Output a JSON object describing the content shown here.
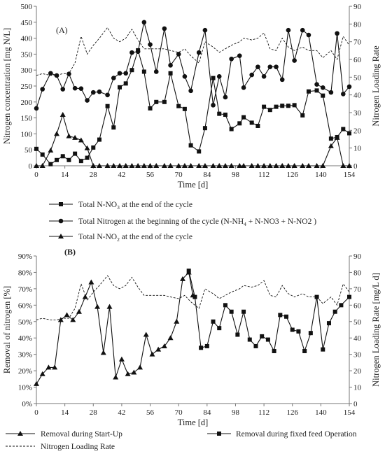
{
  "chart_data": [
    {
      "type": "line",
      "panel_label": "(A)",
      "xlabel": "Time [d]",
      "ylabel": "Nitrogen concentration [mg N/L]",
      "y2label": "Nitrogen Loading Rate",
      "xlim": [
        0,
        154
      ],
      "ylim": [
        0,
        500
      ],
      "y2lim": [
        0,
        90
      ],
      "x_ticks": [
        0,
        14,
        28,
        42,
        56,
        70,
        84,
        98,
        112,
        126,
        140,
        154
      ],
      "y_ticks": [
        0,
        50,
        100,
        150,
        200,
        250,
        300,
        350,
        400,
        450,
        500
      ],
      "y2_ticks": [
        0,
        10,
        20,
        30,
        40,
        50,
        60,
        70,
        80,
        90
      ],
      "legend_position": "bottom",
      "series": [
        {
          "name": "Total N-NO3 at the end of the cycle",
          "legend_main": "Total N-NO",
          "legend_sub": "3",
          "legend_tail": " at the end of the cycle",
          "marker": "square",
          "axis": "left",
          "x": [
            0,
            3,
            7,
            10,
            13,
            16,
            19,
            22,
            25,
            28,
            31,
            35,
            38,
            41,
            44,
            47,
            50,
            53,
            56,
            59,
            63,
            66,
            70,
            73,
            76,
            80,
            83,
            87,
            90,
            93,
            96,
            100,
            102,
            106,
            109,
            112,
            115,
            118,
            121,
            124,
            127,
            131,
            134,
            138,
            141,
            145,
            148,
            151,
            154
          ],
          "y": [
            53,
            35,
            5,
            18,
            30,
            18,
            38,
            15,
            25,
            57,
            82,
            187,
            120,
            246,
            258,
            300,
            362,
            295,
            180,
            200,
            200,
            290,
            187,
            178,
            64,
            45,
            118,
            275,
            163,
            160,
            115,
            133,
            152,
            135,
            125,
            185,
            175,
            185,
            188,
            188,
            190,
            158,
            233,
            236,
            220,
            85,
            90,
            115,
            102
          ]
        },
        {
          "name": "Total Nitrogen at the beginning of the cycle (N-NH4 + N-NO3 + N-NO2)",
          "legend_main": "Total Nitrogen at the beginning of the cycle (N-NH",
          "legend_sub": "4",
          "legend_tail": " + N-NO3 + N-NO2 )",
          "marker": "circle",
          "axis": "left",
          "x": [
            0,
            3,
            7,
            10,
            13,
            16,
            19,
            22,
            25,
            28,
            31,
            35,
            38,
            41,
            44,
            47,
            50,
            53,
            56,
            59,
            63,
            66,
            70,
            73,
            76,
            80,
            83,
            87,
            90,
            93,
            96,
            100,
            102,
            106,
            109,
            112,
            115,
            118,
            121,
            124,
            127,
            131,
            134,
            138,
            141,
            145,
            148,
            151,
            154
          ],
          "y": [
            180,
            240,
            290,
            283,
            240,
            288,
            243,
            242,
            205,
            230,
            232,
            222,
            275,
            290,
            290,
            355,
            358,
            450,
            380,
            295,
            430,
            315,
            350,
            280,
            235,
            355,
            425,
            190,
            280,
            215,
            335,
            345,
            245,
            285,
            310,
            280,
            310,
            310,
            270,
            425,
            330,
            425,
            410,
            255,
            245,
            230,
            415,
            225,
            248
          ]
        },
        {
          "name": "Total N-NO2 at the end of the cycle",
          "legend_main": "Total N-NO",
          "legend_sub": "2",
          "legend_tail": " at the end of the cycle",
          "marker": "triangle",
          "axis": "left",
          "x": [
            0,
            3,
            7,
            10,
            13,
            16,
            19,
            22,
            25,
            28,
            31,
            35,
            38,
            41,
            44,
            47,
            50,
            53,
            56,
            59,
            63,
            66,
            70,
            73,
            76,
            80,
            83,
            87,
            90,
            93,
            96,
            100,
            102,
            106,
            109,
            112,
            115,
            118,
            121,
            124,
            127,
            131,
            134,
            138,
            141,
            145,
            148,
            151,
            154
          ],
          "y": [
            0,
            0,
            48,
            100,
            160,
            93,
            88,
            80,
            55,
            0,
            0,
            0,
            0,
            0,
            0,
            0,
            0,
            0,
            0,
            0,
            0,
            0,
            0,
            0,
            0,
            0,
            0,
            0,
            0,
            0,
            0,
            0,
            0,
            0,
            0,
            0,
            0,
            0,
            0,
            0,
            0,
            0,
            0,
            0,
            0,
            62,
            88,
            0,
            0
          ]
        },
        {
          "name": "Nitrogen Loading Rate",
          "marker": "none",
          "style": "dashed",
          "axis": "right",
          "x": [
            0,
            3,
            7,
            10,
            13,
            16,
            19,
            22,
            25,
            28,
            31,
            35,
            38,
            41,
            44,
            47,
            50,
            53,
            56,
            59,
            63,
            66,
            70,
            73,
            76,
            80,
            83,
            87,
            90,
            93,
            96,
            100,
            102,
            106,
            109,
            112,
            115,
            118,
            121,
            124,
            127,
            131,
            134,
            138,
            141,
            145,
            148,
            151,
            154
          ],
          "y": [
            51,
            52,
            51,
            51,
            52,
            52,
            58,
            73,
            63,
            68,
            72,
            78,
            72,
            70,
            72,
            77,
            71,
            66,
            66,
            66,
            66,
            65,
            64,
            66,
            62,
            58,
            70,
            67,
            64,
            66,
            68,
            70,
            72,
            71,
            72,
            75,
            66,
            65,
            72,
            67,
            65,
            67,
            65,
            65,
            61,
            65,
            60,
            73,
            68
          ]
        }
      ]
    },
    {
      "type": "line",
      "panel_label": "(B)",
      "xlabel": "Time [d]",
      "ylabel": "Removal of nitrogen [%]",
      "y2label": "Nitrogen Loading Rate [mg/L d]",
      "xlim": [
        0,
        154
      ],
      "ylim": [
        0,
        90
      ],
      "y2lim": [
        0,
        90
      ],
      "x_ticks": [
        0,
        14,
        28,
        42,
        56,
        70,
        84,
        98,
        112,
        126,
        140,
        154
      ],
      "y_ticks": [
        0,
        10,
        20,
        30,
        40,
        50,
        60,
        70,
        80,
        90
      ],
      "y_tick_labels": [
        "0%",
        "10%",
        "20%",
        "30%",
        "40%",
        "50%",
        "60%",
        "70%",
        "80%",
        "90%"
      ],
      "y2_ticks": [
        0,
        10,
        20,
        30,
        40,
        50,
        60,
        70,
        80,
        90
      ],
      "legend_position": "bottom",
      "series": [
        {
          "name": "Removal during Start-Up",
          "marker": "triangle",
          "axis": "left",
          "x": [
            0,
            3,
            6,
            9,
            12,
            15,
            18,
            21,
            24,
            27,
            30,
            33,
            36,
            39,
            42,
            45,
            48,
            51,
            54,
            57,
            60,
            63,
            66,
            69,
            72,
            75,
            77
          ],
          "y": [
            12,
            18,
            22,
            22,
            51,
            54,
            51,
            56,
            65,
            74,
            59,
            31,
            59,
            16,
            27,
            18,
            19,
            22,
            42,
            30,
            33,
            35,
            40,
            50,
            76,
            80,
            66
          ]
        },
        {
          "name": "Removal during fixed feed Operation",
          "marker": "square",
          "axis": "left",
          "x": [
            75,
            78,
            81,
            84,
            87,
            90,
            93,
            96,
            99,
            102,
            105,
            108,
            111,
            114,
            117,
            120,
            123,
            126,
            129,
            132,
            135,
            138,
            141,
            144,
            147,
            150,
            154
          ],
          "y": [
            81,
            65,
            34,
            35,
            50,
            46,
            60,
            56,
            42,
            56,
            39,
            35,
            41,
            39,
            32,
            54,
            53,
            45,
            44,
            32,
            43,
            65,
            33,
            49,
            56,
            60,
            65
          ]
        },
        {
          "name": "Nitrogen Loading Rate",
          "marker": "none",
          "style": "dashed",
          "axis": "right",
          "x": [
            0,
            3,
            7,
            10,
            13,
            16,
            19,
            22,
            25,
            28,
            31,
            35,
            38,
            41,
            44,
            47,
            50,
            53,
            56,
            59,
            63,
            66,
            70,
            73,
            76,
            80,
            83,
            87,
            90,
            93,
            96,
            100,
            102,
            106,
            109,
            112,
            115,
            118,
            121,
            124,
            127,
            131,
            134,
            138,
            141,
            145,
            148,
            151,
            154
          ],
          "y": [
            51,
            52,
            51,
            51,
            52,
            52,
            58,
            73,
            63,
            68,
            72,
            78,
            72,
            70,
            72,
            77,
            71,
            66,
            66,
            66,
            66,
            65,
            64,
            66,
            62,
            58,
            70,
            67,
            64,
            66,
            68,
            70,
            72,
            71,
            72,
            75,
            66,
            65,
            72,
            67,
            65,
            67,
            65,
            65,
            61,
            65,
            60,
            73,
            68
          ]
        }
      ]
    }
  ]
}
